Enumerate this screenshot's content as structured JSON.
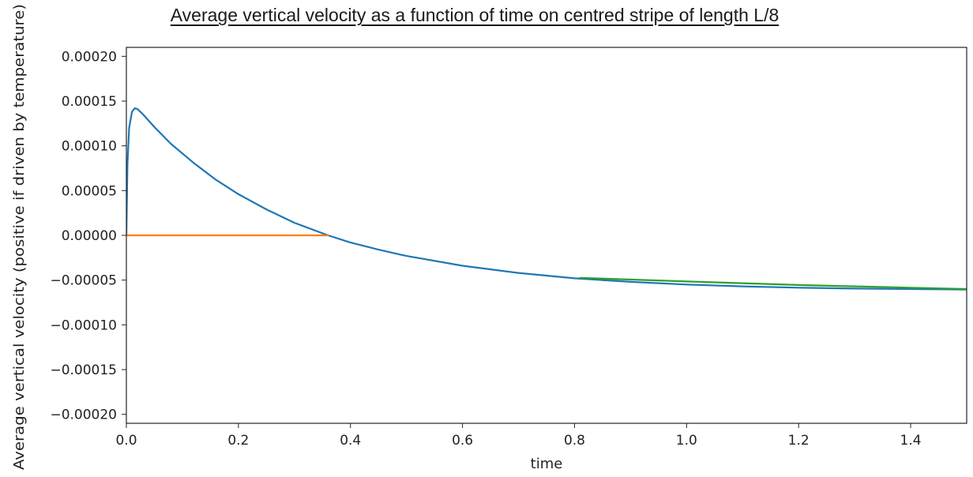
{
  "chart_data": {
    "type": "line",
    "title": "Average vertical velocity as a function of time on centred stripe of length L/8",
    "xlabel": "time",
    "ylabel": "Average vertical velocity (positive if driven by temperature)",
    "xlim": [
      0.0,
      1.5
    ],
    "ylim": [
      -0.00021,
      0.00021
    ],
    "xticks": [
      0.0,
      0.2,
      0.4,
      0.6,
      0.8,
      1.0,
      1.2,
      1.4
    ],
    "xtick_labels": [
      "0.0",
      "0.2",
      "0.4",
      "0.6",
      "0.8",
      "1.0",
      "1.2",
      "1.4"
    ],
    "yticks": [
      0.0002,
      0.00015,
      0.0001,
      5e-05,
      0.0,
      -5e-05,
      -0.0001,
      -0.00015,
      -0.0002
    ],
    "ytick_labels": [
      "0.00020",
      "0.00015",
      "0.00010",
      "0.00005",
      "0.00000",
      "−0.00005",
      "−0.00010",
      "−0.00015",
      "−0.00020"
    ],
    "grid": false,
    "series": [
      {
        "color": "#1f77b4",
        "x": [
          0.0,
          0.002,
          0.005,
          0.01,
          0.015,
          0.02,
          0.03,
          0.05,
          0.08,
          0.12,
          0.16,
          0.2,
          0.25,
          0.3,
          0.36,
          0.4,
          0.45,
          0.5,
          0.6,
          0.7,
          0.8,
          0.9,
          1.0,
          1.1,
          1.2,
          1.3,
          1.4,
          1.5
        ],
        "y": [
          0.0,
          8e-05,
          0.00012,
          0.000138,
          0.000142,
          0.000141,
          0.000135,
          0.000121,
          0.000102,
          8.1e-05,
          6.2e-05,
          4.6e-05,
          2.9e-05,
          1.4e-05,
          0.0,
          -8e-06,
          -1.6e-05,
          -2.3e-05,
          -3.4e-05,
          -4.2e-05,
          -4.8e-05,
          -5.2e-05,
          -5.5e-05,
          -5.7e-05,
          -5.85e-05,
          -5.95e-05,
          -6e-05,
          -6.05e-05
        ]
      },
      {
        "color": "#ff7f0e",
        "x": [
          0.0,
          0.36
        ],
        "y": [
          0.0,
          0.0
        ]
      },
      {
        "color": "#2ca02c",
        "x": [
          0.81,
          1.0,
          1.2,
          1.4,
          1.5
        ],
        "y": [
          -4.75e-05,
          -5.15e-05,
          -5.55e-05,
          -5.85e-05,
          -6e-05
        ]
      }
    ]
  }
}
